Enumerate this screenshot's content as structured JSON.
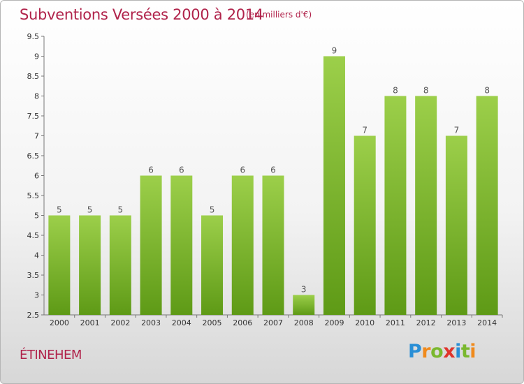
{
  "title": "Subventions Versées 2000 à 2014",
  "subtitle": "(en milliers d'€)",
  "commune": "ÉTINEHEM",
  "brand": {
    "letters": [
      "P",
      "r",
      "o",
      "x",
      "i",
      "t",
      "i"
    ],
    "colors": [
      "#2a8fd6",
      "#f08a1c",
      "#7ab82e",
      "#e0342b",
      "#2a8fd6",
      "#7ab82e",
      "#f08a1c"
    ]
  },
  "colors": {
    "bar_top": "#9ccf4a",
    "bar_bottom": "#5e9a16",
    "title": "#b0224a"
  },
  "chart_data": {
    "type": "bar",
    "title": "Subventions Versées 2000 à 2014",
    "ylabel": "(en milliers d'€)",
    "categories": [
      "2000",
      "2001",
      "2002",
      "2003",
      "2004",
      "2005",
      "2006",
      "2007",
      "2008",
      "2009",
      "2010",
      "2011",
      "2012",
      "2013",
      "2014"
    ],
    "values": [
      5,
      5,
      5,
      6,
      6,
      5,
      6,
      6,
      3,
      9,
      7,
      8,
      8,
      7,
      8
    ],
    "ylim": [
      2.5,
      9.5
    ],
    "yticks": [
      "2.5",
      "3",
      "3.5",
      "4",
      "4.5",
      "5",
      "5.5",
      "6",
      "6.5",
      "7",
      "7.5",
      "8",
      "8.5",
      "9",
      "9.5"
    ],
    "grid": false,
    "data_labels": true
  }
}
